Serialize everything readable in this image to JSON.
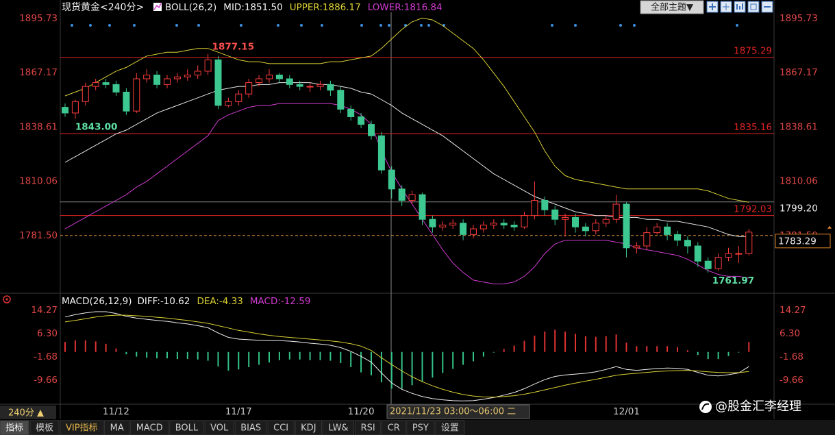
{
  "chart_data": [
    {
      "type": "candlestick",
      "title": "现货黄金<240分>",
      "indicator": "BOLL(26,2)",
      "candles": {
        "open": [
          1849,
          1846,
          1852,
          1860,
          1862,
          1861,
          1857,
          1847,
          1864,
          1866,
          1861,
          1864,
          1865,
          1866,
          1868,
          1874,
          1850,
          1852,
          1856,
          1862,
          1864,
          1866,
          1864,
          1861,
          1860,
          1860,
          1861,
          1858,
          1848,
          1844,
          1840,
          1834,
          1816,
          1806,
          1800,
          1803,
          1790,
          1786,
          1787,
          1788,
          1782,
          1785,
          1787,
          1788,
          1787,
          1786,
          1792,
          1800,
          1795,
          1790,
          1791,
          1786,
          1784,
          1788,
          1790,
          1798,
          1775,
          1776,
          1783,
          1786,
          1782,
          1779,
          1776,
          1768,
          1764,
          1770,
          1772,
          1772
        ],
        "high": [
          1851,
          1853,
          1862,
          1864,
          1864,
          1863,
          1859,
          1867,
          1869,
          1868,
          1866,
          1867,
          1869,
          1871,
          1877.15,
          1876,
          1854,
          1858,
          1864,
          1866,
          1869,
          1867,
          1866,
          1863,
          1862,
          1863,
          1863,
          1860,
          1850,
          1846,
          1842,
          1836,
          1818,
          1808,
          1805,
          1804,
          1792,
          1789,
          1790,
          1790,
          1787,
          1789,
          1790,
          1790,
          1789,
          1794,
          1810,
          1802,
          1797,
          1793,
          1793,
          1788,
          1790,
          1792,
          1803,
          1799,
          1778,
          1786,
          1788,
          1788,
          1784,
          1781,
          1778,
          1770,
          1772,
          1775,
          1776,
          1785
        ],
        "low": [
          1844,
          {
            "value": 1843,
            "label": "1843.00"
          },
          1850,
          1858,
          1859,
          1855,
          1845,
          1846,
          1862,
          1859,
          1859,
          1862,
          1863,
          1864,
          1866,
          1848,
          1849,
          1850,
          1854,
          1860,
          1862,
          1862,
          1859,
          1858,
          1857,
          1858,
          1855,
          1846,
          1842,
          1838,
          1832,
          1814,
          1801,
          1797,
          1798,
          1787,
          1783,
          1784,
          1785,
          1779,
          1780,
          1783,
          1785,
          1785,
          1784,
          1785,
          1790,
          1792,
          1787,
          1781,
          1783,
          1781,
          1782,
          1786,
          1788,
          1770,
          1772,
          1774,
          1782,
          1779,
          1776,
          1772,
          1765,
          1761.97,
          1763,
          1768,
          1767,
          1771
        ],
        "close": [
          1846,
          1852,
          1860,
          1862,
          1861,
          1857,
          1847,
          1864,
          1866,
          1861,
          1864,
          1865,
          1866,
          1868,
          1874,
          1850,
          1852,
          1856,
          1862,
          1864,
          1866,
          1864,
          1861,
          1860,
          1860,
          1861,
          1858,
          1848,
          1844,
          1840,
          1834,
          1816,
          1806,
          1800,
          1803,
          1790,
          1786,
          1787,
          1788,
          1782,
          1785,
          1787,
          1788,
          1787,
          1786,
          1792,
          1800,
          1795,
          1790,
          1791,
          1786,
          1784,
          1788,
          1790,
          1798,
          1775,
          1776,
          1783,
          1786,
          1782,
          1779,
          1776,
          1768,
          1764,
          1770,
          1772,
          1772,
          1783.29
        ],
        "up_color": "#ff3c3c",
        "down_color": "#3cc890"
      },
      "series": [
        {
          "name": "MID:1851.50",
          "color": "#e8e8e8",
          "values": [
            1820,
            1823,
            1826,
            1829,
            1832,
            1835,
            1837,
            1840,
            1843,
            1846,
            1848,
            1850,
            1852,
            1854,
            1856,
            1858,
            1859,
            1860,
            1860,
            1861,
            1861,
            1862,
            1862,
            1862,
            1862,
            1861,
            1861,
            1860,
            1859,
            1857,
            1856,
            1853,
            1850,
            1846,
            1843,
            1840,
            1837,
            1834,
            1830,
            1826,
            1822,
            1818,
            1814,
            1811,
            1808,
            1805,
            1802,
            1800,
            1798,
            1796,
            1794,
            1793,
            1792,
            1792,
            1791,
            1791,
            1791,
            1790,
            1790,
            1789,
            1789,
            1788,
            1787,
            1786,
            1784,
            1782,
            1781,
            1781
          ]
        },
        {
          "name": "UPPER:1886.17",
          "color": "#dcd234",
          "values": [
            1855,
            1857,
            1859,
            1862,
            1865,
            1868,
            1870,
            1873,
            1876,
            1877,
            1878,
            1878,
            1879,
            1880,
            1880,
            1878,
            1876,
            1874,
            1873,
            1873,
            1872,
            1872,
            1872,
            1872,
            1872,
            1872,
            1873,
            1873,
            1874,
            1875,
            1876,
            1880,
            1885,
            1890,
            1894,
            1896,
            1895,
            1892,
            1888,
            1884,
            1880,
            1874,
            1867,
            1860,
            1852,
            1844,
            1836,
            1826,
            1818,
            1813,
            1811,
            1810,
            1809,
            1808,
            1807,
            1806,
            1806,
            1806,
            1806,
            1806,
            1806,
            1806,
            1806,
            1805,
            1803,
            1801,
            1800,
            1799
          ]
        },
        {
          "name": "LOWER:1816.84",
          "color": "#d23cd2",
          "values": [
            1785,
            1788,
            1791,
            1794,
            1797,
            1800,
            1803,
            1807,
            1810,
            1814,
            1818,
            1822,
            1826,
            1830,
            1834,
            1842,
            1845,
            1847,
            1849,
            1850,
            1850,
            1851,
            1851,
            1851,
            1851,
            1851,
            1851,
            1850,
            1848,
            1845,
            1840,
            1826,
            1815,
            1806,
            1798,
            1790,
            1782,
            1774,
            1767,
            1762,
            1758,
            1757,
            1756,
            1756,
            1757,
            1760,
            1765,
            1772,
            1777,
            1779,
            1779,
            1779,
            1779,
            1779,
            1778,
            1777,
            1775,
            1774,
            1773,
            1772,
            1771,
            1769,
            1766,
            1763,
            1761,
            1760,
            1760,
            1759
          ]
        }
      ],
      "ylim": [
        1752.2,
        1899.0
      ],
      "yticks": [
        1895.73,
        1867.17,
        1838.61,
        1810.06,
        {
          "value": 1781.5,
          "label": "1781.50"
        }
      ],
      "levels": [
        {
          "value": 1875.29,
          "color": "#e02424"
        },
        {
          "value": 1835.16,
          "color": "#e02424"
        },
        {
          "value": 1792.03,
          "color": "#e02424"
        }
      ],
      "crosshair_y": {
        "value": 1799.2,
        "label": "1799.20"
      },
      "grid": false
    },
    {
      "type": "macd",
      "title": "MACD(26,12,9)",
      "categories": [
        null,
        null,
        null,
        null,
        null,
        "11/12",
        null,
        null,
        null,
        null,
        null,
        null,
        null,
        null,
        null,
        null,
        null,
        "11/17",
        null,
        null,
        null,
        null,
        null,
        null,
        null,
        null,
        null,
        null,
        null,
        "11/20",
        null,
        null,
        null,
        null,
        null,
        null,
        null,
        null,
        null,
        null,
        null,
        null,
        null,
        null,
        null,
        null,
        null,
        null,
        null,
        null,
        null,
        null,
        null,
        null,
        null,
        "12/01",
        null,
        null,
        null,
        null,
        null,
        null,
        null,
        null,
        null,
        null,
        null,
        null
      ],
      "series": [
        {
          "name": "DIFF:-10.62",
          "color": "#f0f0f0",
          "values": [
            12.0,
            12.8,
            13.4,
            13.8,
            13.8,
            13.2,
            12.2,
            11.6,
            11.2,
            10.8,
            10.5,
            10.0,
            9.6,
            9.0,
            8.3,
            6.5,
            5.0,
            4.4,
            4.2,
            4.0,
            3.9,
            3.9,
            3.7,
            3.4,
            3.0,
            2.7,
            2.3,
            1.5,
            0.2,
            -1.5,
            -3.5,
            -7.2,
            -10.62,
            -12.8,
            -14.2,
            -15.3,
            -16.0,
            -16.4,
            -16.7,
            -16.8,
            -16.7,
            -16.2,
            -15.6,
            -14.8,
            -13.9,
            -12.6,
            -11.0,
            -9.5,
            -8.4,
            -7.9,
            -7.6,
            -7.3,
            -6.8,
            -6.0,
            -5.0,
            -6.0,
            -6.3,
            -6.0,
            -5.7,
            -5.5,
            -5.6,
            -6.0,
            -7.0,
            -8.0,
            -8.2,
            -7.8,
            -7.2,
            -5.0
          ]
        },
        {
          "name": "DEA:-4.33",
          "color": "#dcd234",
          "values": [
            10.3,
            10.8,
            11.4,
            12.0,
            12.4,
            12.6,
            12.6,
            12.4,
            12.2,
            11.9,
            11.6,
            11.2,
            10.8,
            10.3,
            9.8,
            9.0,
            8.2,
            7.4,
            6.8,
            6.2,
            5.7,
            5.3,
            5.0,
            4.7,
            4.4,
            4.1,
            3.8,
            3.4,
            2.8,
            2.0,
            0.5,
            -2.0,
            -4.33,
            -6.5,
            -8.5,
            -10.2,
            -11.6,
            -12.8,
            -13.8,
            -14.6,
            -15.1,
            -15.4,
            -15.5,
            -15.3,
            -15.0,
            -14.5,
            -13.8,
            -13.0,
            -12.2,
            -11.4,
            -10.7,
            -10.0,
            -9.4,
            -8.7,
            -8.0,
            -7.6,
            -7.3,
            -7.0,
            -6.7,
            -6.5,
            -6.4,
            -6.3,
            -6.5,
            -6.8,
            -7.0,
            -7.1,
            -7.1,
            -6.7
          ]
        }
      ],
      "histogram": {
        "name": "MACD:-12.59",
        "legend_color": "#d23cd2",
        "up_color": "#e03232",
        "down_color": "#34c488",
        "values": [
          3.4,
          4.0,
          4.0,
          3.6,
          2.8,
          1.2,
          -0.8,
          -1.6,
          -2.0,
          -2.2,
          -2.2,
          -2.4,
          -2.4,
          -2.6,
          -3.0,
          -5.0,
          -6.4,
          -6.0,
          -5.2,
          -4.4,
          -3.6,
          -2.8,
          -2.6,
          -2.6,
          -2.8,
          -2.8,
          -3.0,
          -3.8,
          -5.2,
          -7.0,
          -8.0,
          -10.4,
          -12.59,
          -12.6,
          -11.4,
          -10.2,
          -8.8,
          -7.2,
          -5.8,
          -4.4,
          -3.2,
          -1.6,
          -0.2,
          1.0,
          2.2,
          3.8,
          5.6,
          7.0,
          7.6,
          7.0,
          6.2,
          5.4,
          5.2,
          5.4,
          6.0,
          3.2,
          2.0,
          2.0,
          2.0,
          2.0,
          1.6,
          0.6,
          -1.0,
          -2.4,
          -2.4,
          -1.4,
          -0.2,
          3.4
        ]
      },
      "ylim": [
        -17.9,
        19.2
      ],
      "yticks": [
        14.27,
        {
          "value": 6.3,
          "label": "6.30"
        },
        -1.68,
        -9.66
      ],
      "grid": false
    }
  ],
  "crosshair_label": "2021/11/23 03:00～06:00 二",
  "theme_button": "全部主题▼",
  "period": "240分 ▲",
  "tabs": [
    "指标",
    "模板",
    "VIP指标",
    "MA",
    "MACD",
    "BOLL",
    "VOL",
    "BIAS",
    "CCI",
    "KDJ",
    "LW&",
    "RSI",
    "CR",
    "PSY",
    "设置"
  ],
  "watermark": "@股金汇李经理"
}
